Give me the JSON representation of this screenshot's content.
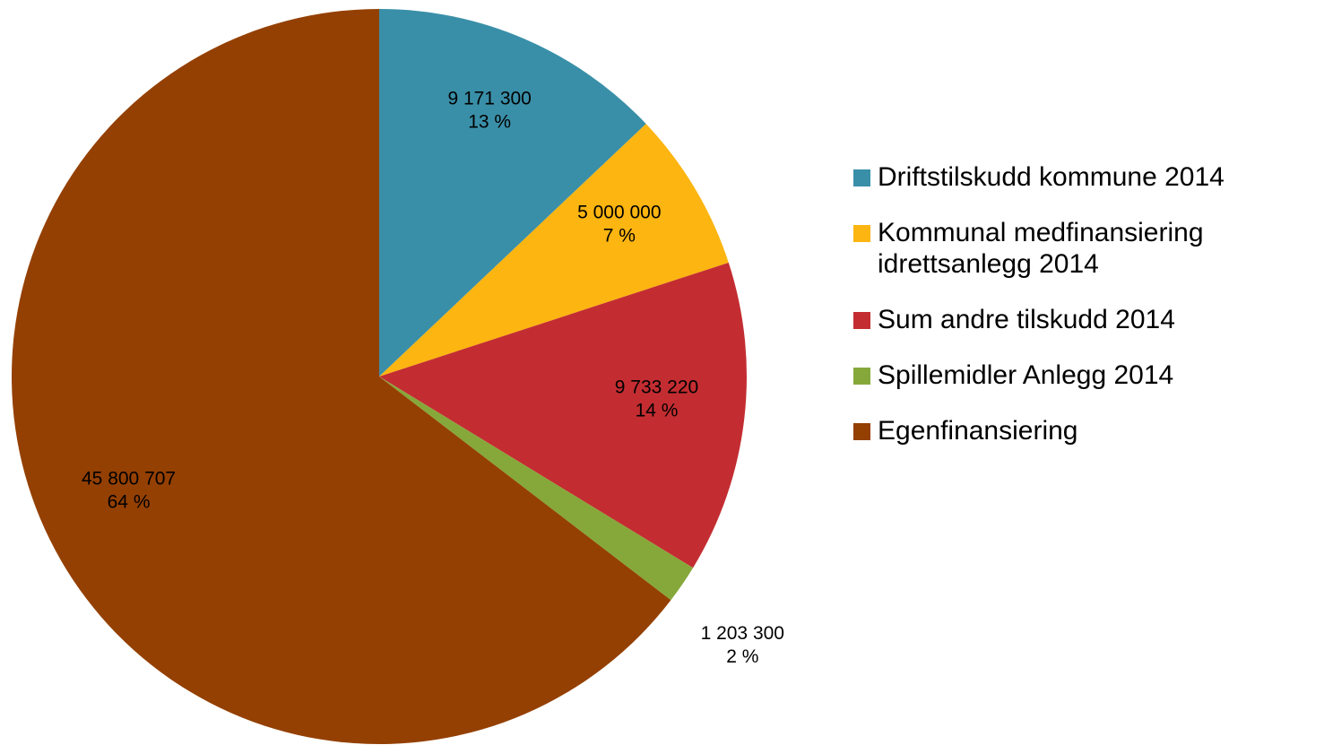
{
  "chart_data": {
    "type": "pie",
    "categories": [
      "Driftstilskudd kommune 2014",
      "Kommunal medfinansiering idrettsanlegg 2014",
      "Sum andre tilskudd 2014",
      "Spillemidler Anlegg 2014",
      "Egenfinansiering"
    ],
    "values": [
      9171300,
      5000000,
      9733220,
      1203300,
      45800707
    ],
    "value_labels": [
      "9 171 300",
      "5 000 000",
      "9 733 220",
      "1 203 300",
      "45 800 707"
    ],
    "percentages": [
      13,
      7,
      14,
      2,
      64
    ],
    "percent_labels": [
      "13 %",
      "7 %",
      "14 %",
      "2 %",
      "64 %"
    ],
    "colors": [
      "#3a8fa8",
      "#fcb511",
      "#c32d31",
      "#86a83a",
      "#944002"
    ],
    "legend": "right"
  }
}
